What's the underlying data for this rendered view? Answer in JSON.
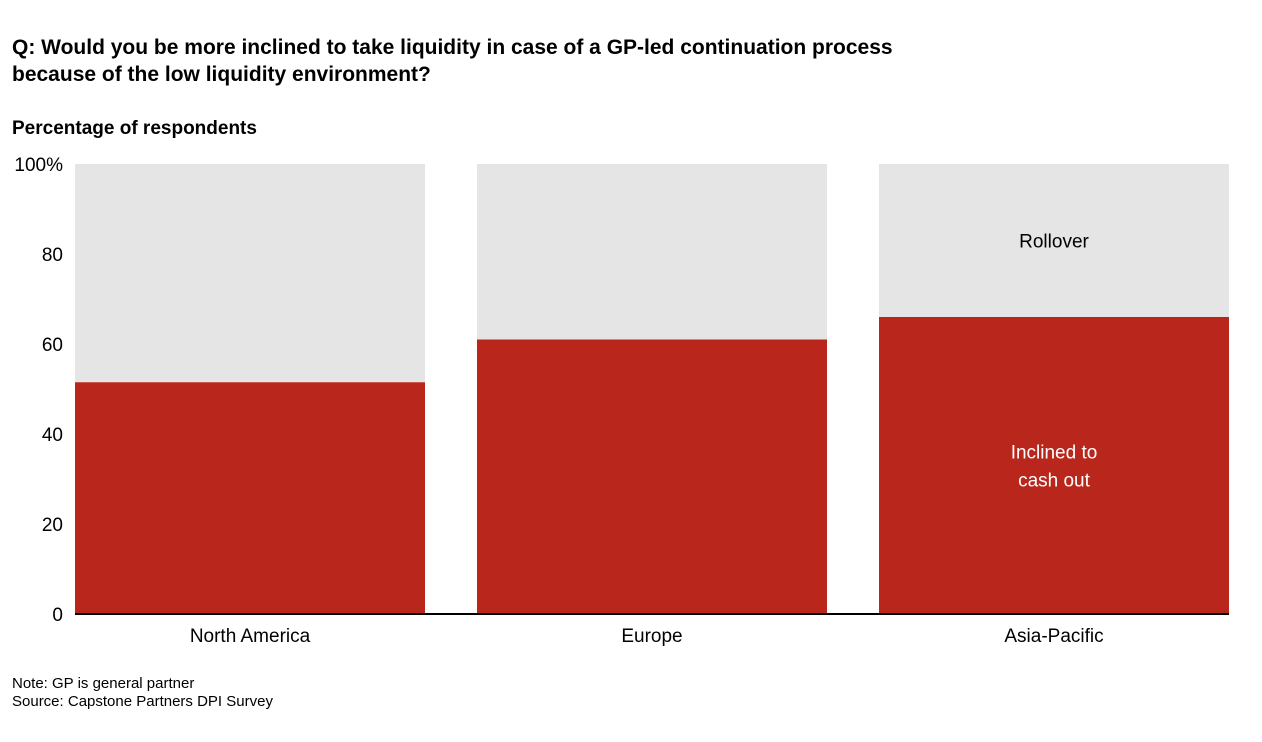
{
  "title_lines": [
    "Q: Would you be more inclined to take liquidity in case of a GP-led continuation process",
    "because of the low liquidity environment?"
  ],
  "notes": {
    "note": "Note: GP is general partner",
    "source": "Source: Capstone Partners DPI Survey"
  },
  "colors": {
    "cash_out": "#b9271c",
    "rollover": "#e5e5e5",
    "baseline": "#000000"
  },
  "chart_data": {
    "type": "bar",
    "stacked": true,
    "title": "Percentage of respondents",
    "categories": [
      "North America",
      "Europe",
      "Asia-Pacific"
    ],
    "series": [
      {
        "name": "Inclined to cash out",
        "values": [
          51.5,
          61,
          66
        ]
      },
      {
        "name": "Rollover",
        "values": [
          48.5,
          39,
          34
        ]
      }
    ],
    "series_labels": {
      "cash_out_line1": "Inclined to",
      "cash_out_line2": "cash out",
      "rollover": "Rollover"
    },
    "yticks": [
      "0",
      "20",
      "40",
      "60",
      "80",
      "100%"
    ],
    "ylim": [
      0,
      100
    ],
    "grid": false,
    "legend": "inline labels on Asia-Pacific bar"
  }
}
